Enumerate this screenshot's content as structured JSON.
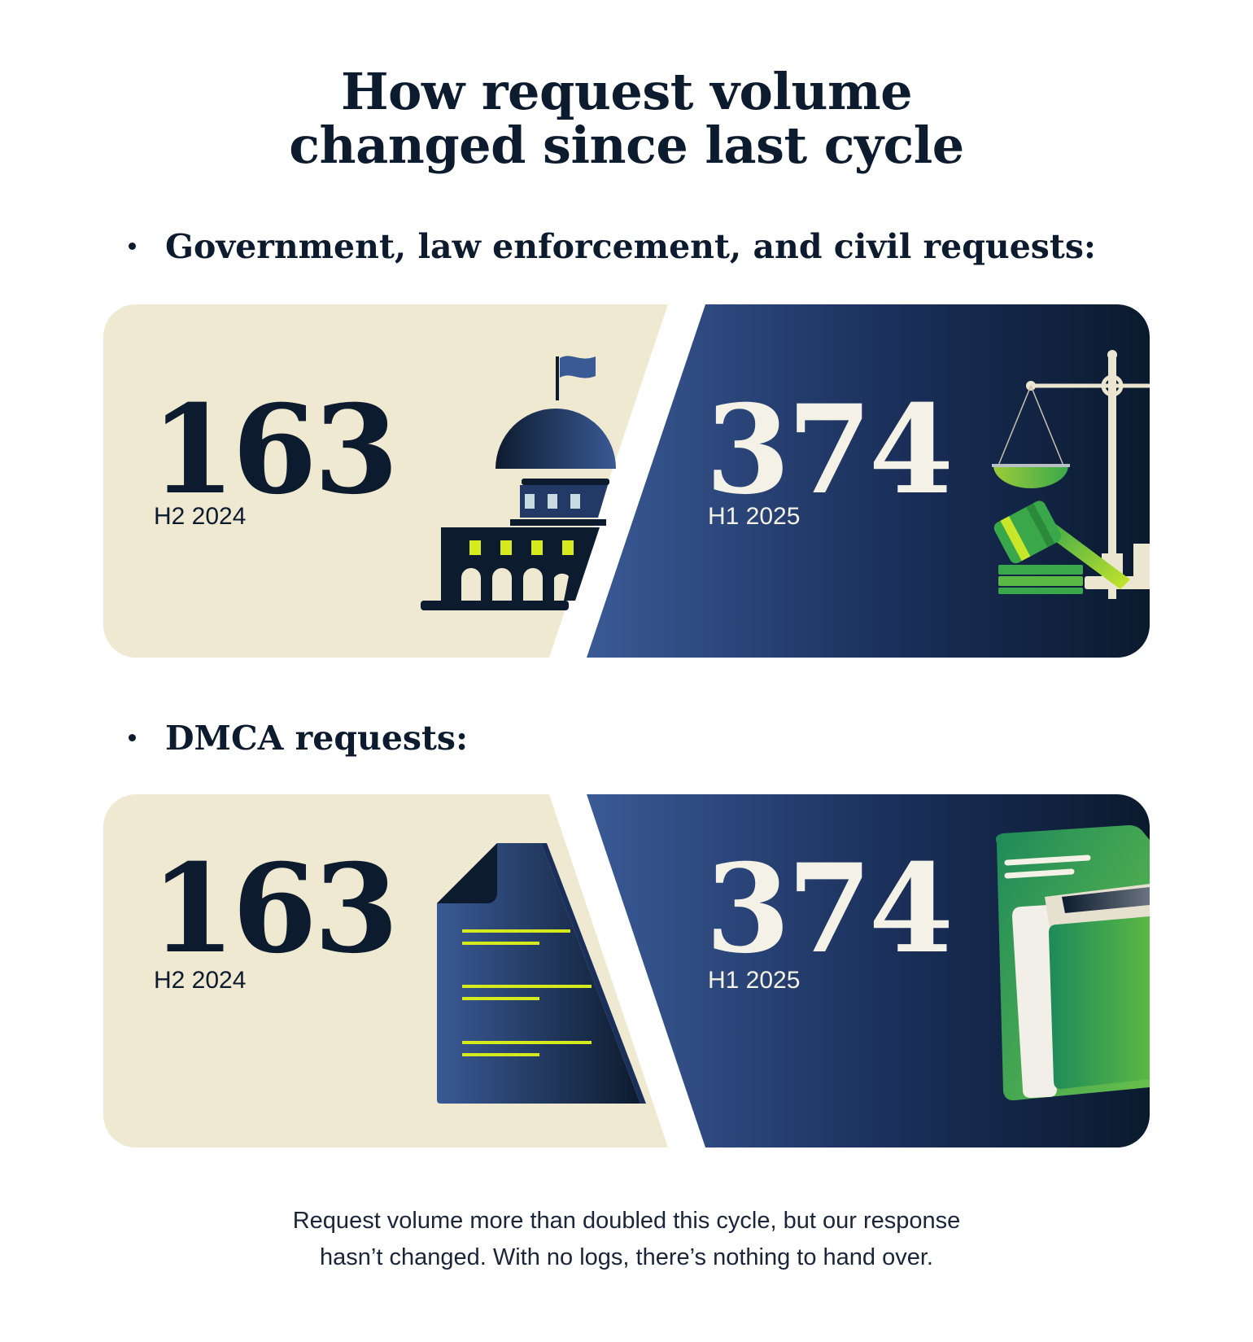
{
  "title": {
    "line1": "How request volume",
    "line2": "changed since last cycle"
  },
  "sections": [
    {
      "heading": "Government, law enforcement, and civil requests:",
      "previous": {
        "value": "163",
        "period": "H2 2024"
      },
      "current": {
        "value": "374",
        "period": "H1 2025"
      },
      "left_icon": "capitol-building-icon",
      "right_icon": "scales-gavel-icon"
    },
    {
      "heading": "DMCA requests:",
      "previous": {
        "value": "163",
        "period": "H2 2024"
      },
      "current": {
        "value": "374",
        "period": "H1 2025"
      },
      "left_icon": "document-icon",
      "right_icon": "folder-icon"
    }
  ],
  "footnote": {
    "line1": "Request volume more than doubled this cycle, but our response",
    "line2": "hasn’t changed. With no logs, there’s nothing to hand over."
  },
  "colors": {
    "navy": "#0d1b2e",
    "beige": "#efe9d2",
    "blue_gradient_start": "#3a5a96",
    "blue_gradient_end": "#0a1a2e",
    "accent_lime": "#d4ea1c",
    "accent_green": "#3aa84a"
  }
}
